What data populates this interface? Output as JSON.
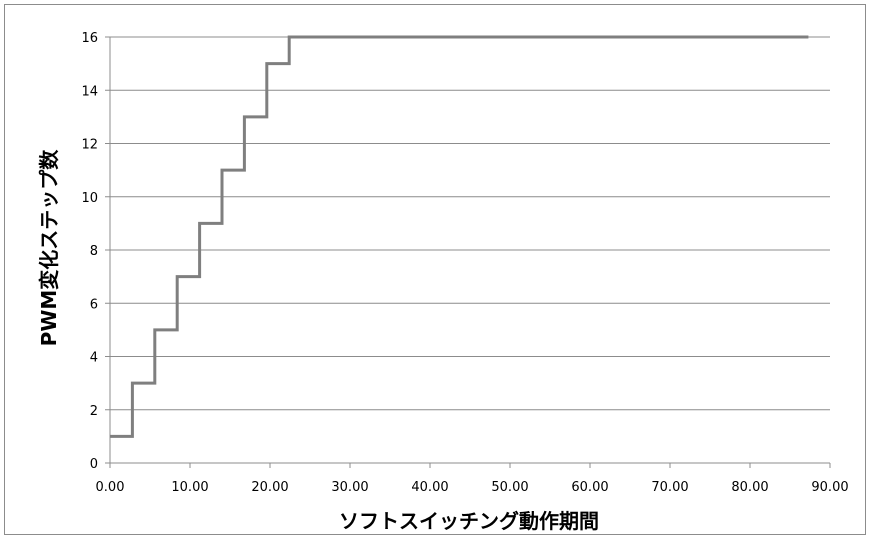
{
  "chart_data": {
    "type": "line",
    "step": true,
    "title": "",
    "xlabel": "ソフトスイッチング動作期間",
    "ylabel": "PWM変化ステップ数",
    "xlim": [
      0,
      90
    ],
    "ylim": [
      0,
      16
    ],
    "x_ticks": [
      "0.00",
      "10.00",
      "20.00",
      "30.00",
      "40.00",
      "50.00",
      "60.00",
      "70.00",
      "80.00",
      "90.00"
    ],
    "y_ticks": [
      "0",
      "2",
      "4",
      "6",
      "8",
      "10",
      "12",
      "14",
      "16"
    ],
    "grid": "horizontal",
    "legend": "none",
    "series": [
      {
        "color": "#7f7f7f",
        "points": [
          [
            0.0,
            1
          ],
          [
            2.8,
            1
          ],
          [
            2.8,
            3
          ],
          [
            5.6,
            3
          ],
          [
            5.6,
            5
          ],
          [
            8.4,
            5
          ],
          [
            8.4,
            7
          ],
          [
            11.2,
            7
          ],
          [
            11.2,
            9
          ],
          [
            14.0,
            9
          ],
          [
            14.0,
            11
          ],
          [
            16.8,
            11
          ],
          [
            16.8,
            13
          ],
          [
            19.6,
            13
          ],
          [
            19.6,
            15
          ],
          [
            22.4,
            15
          ],
          [
            22.4,
            16
          ],
          [
            87.3,
            16
          ]
        ]
      }
    ]
  }
}
